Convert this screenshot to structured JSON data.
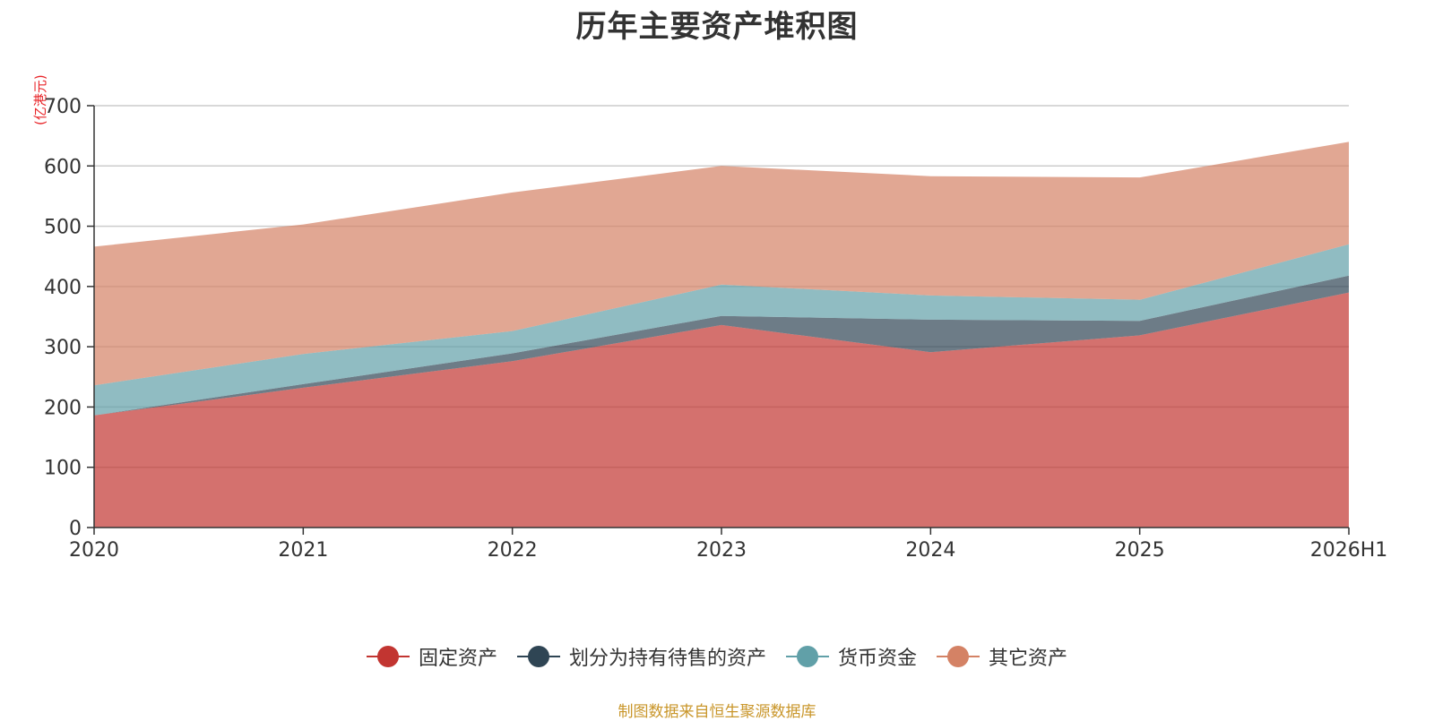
{
  "chart_data": {
    "type": "area",
    "stacked": true,
    "title": "历年主要资产堆积图",
    "unit_label": "(亿港元)",
    "categories": [
      "2020",
      "2021",
      "2022",
      "2023",
      "2024",
      "2025",
      "2026H1"
    ],
    "ylim": [
      0,
      700
    ],
    "yticks": [
      0,
      100,
      200,
      300,
      400,
      500,
      600,
      700
    ],
    "grid": true,
    "legend_position": "bottom",
    "series": [
      {
        "name": "固定资产",
        "color": "#c23531",
        "values": [
          186,
          232,
          276,
          336,
          291,
          319,
          390
        ]
      },
      {
        "name": "划分为持有待售的资产",
        "color": "#2f4554",
        "values": [
          0,
          6,
          13,
          15,
          54,
          24,
          28
        ]
      },
      {
        "name": "货币资金",
        "color": "#61a0a8",
        "values": [
          50,
          50,
          37,
          52,
          40,
          35,
          52
        ]
      },
      {
        "name": "其它资产",
        "color": "#d48265",
        "values": [
          230,
          215,
          230,
          197,
          198,
          203,
          170
        ]
      }
    ],
    "source": "制图数据来自恒生聚源数据库"
  }
}
